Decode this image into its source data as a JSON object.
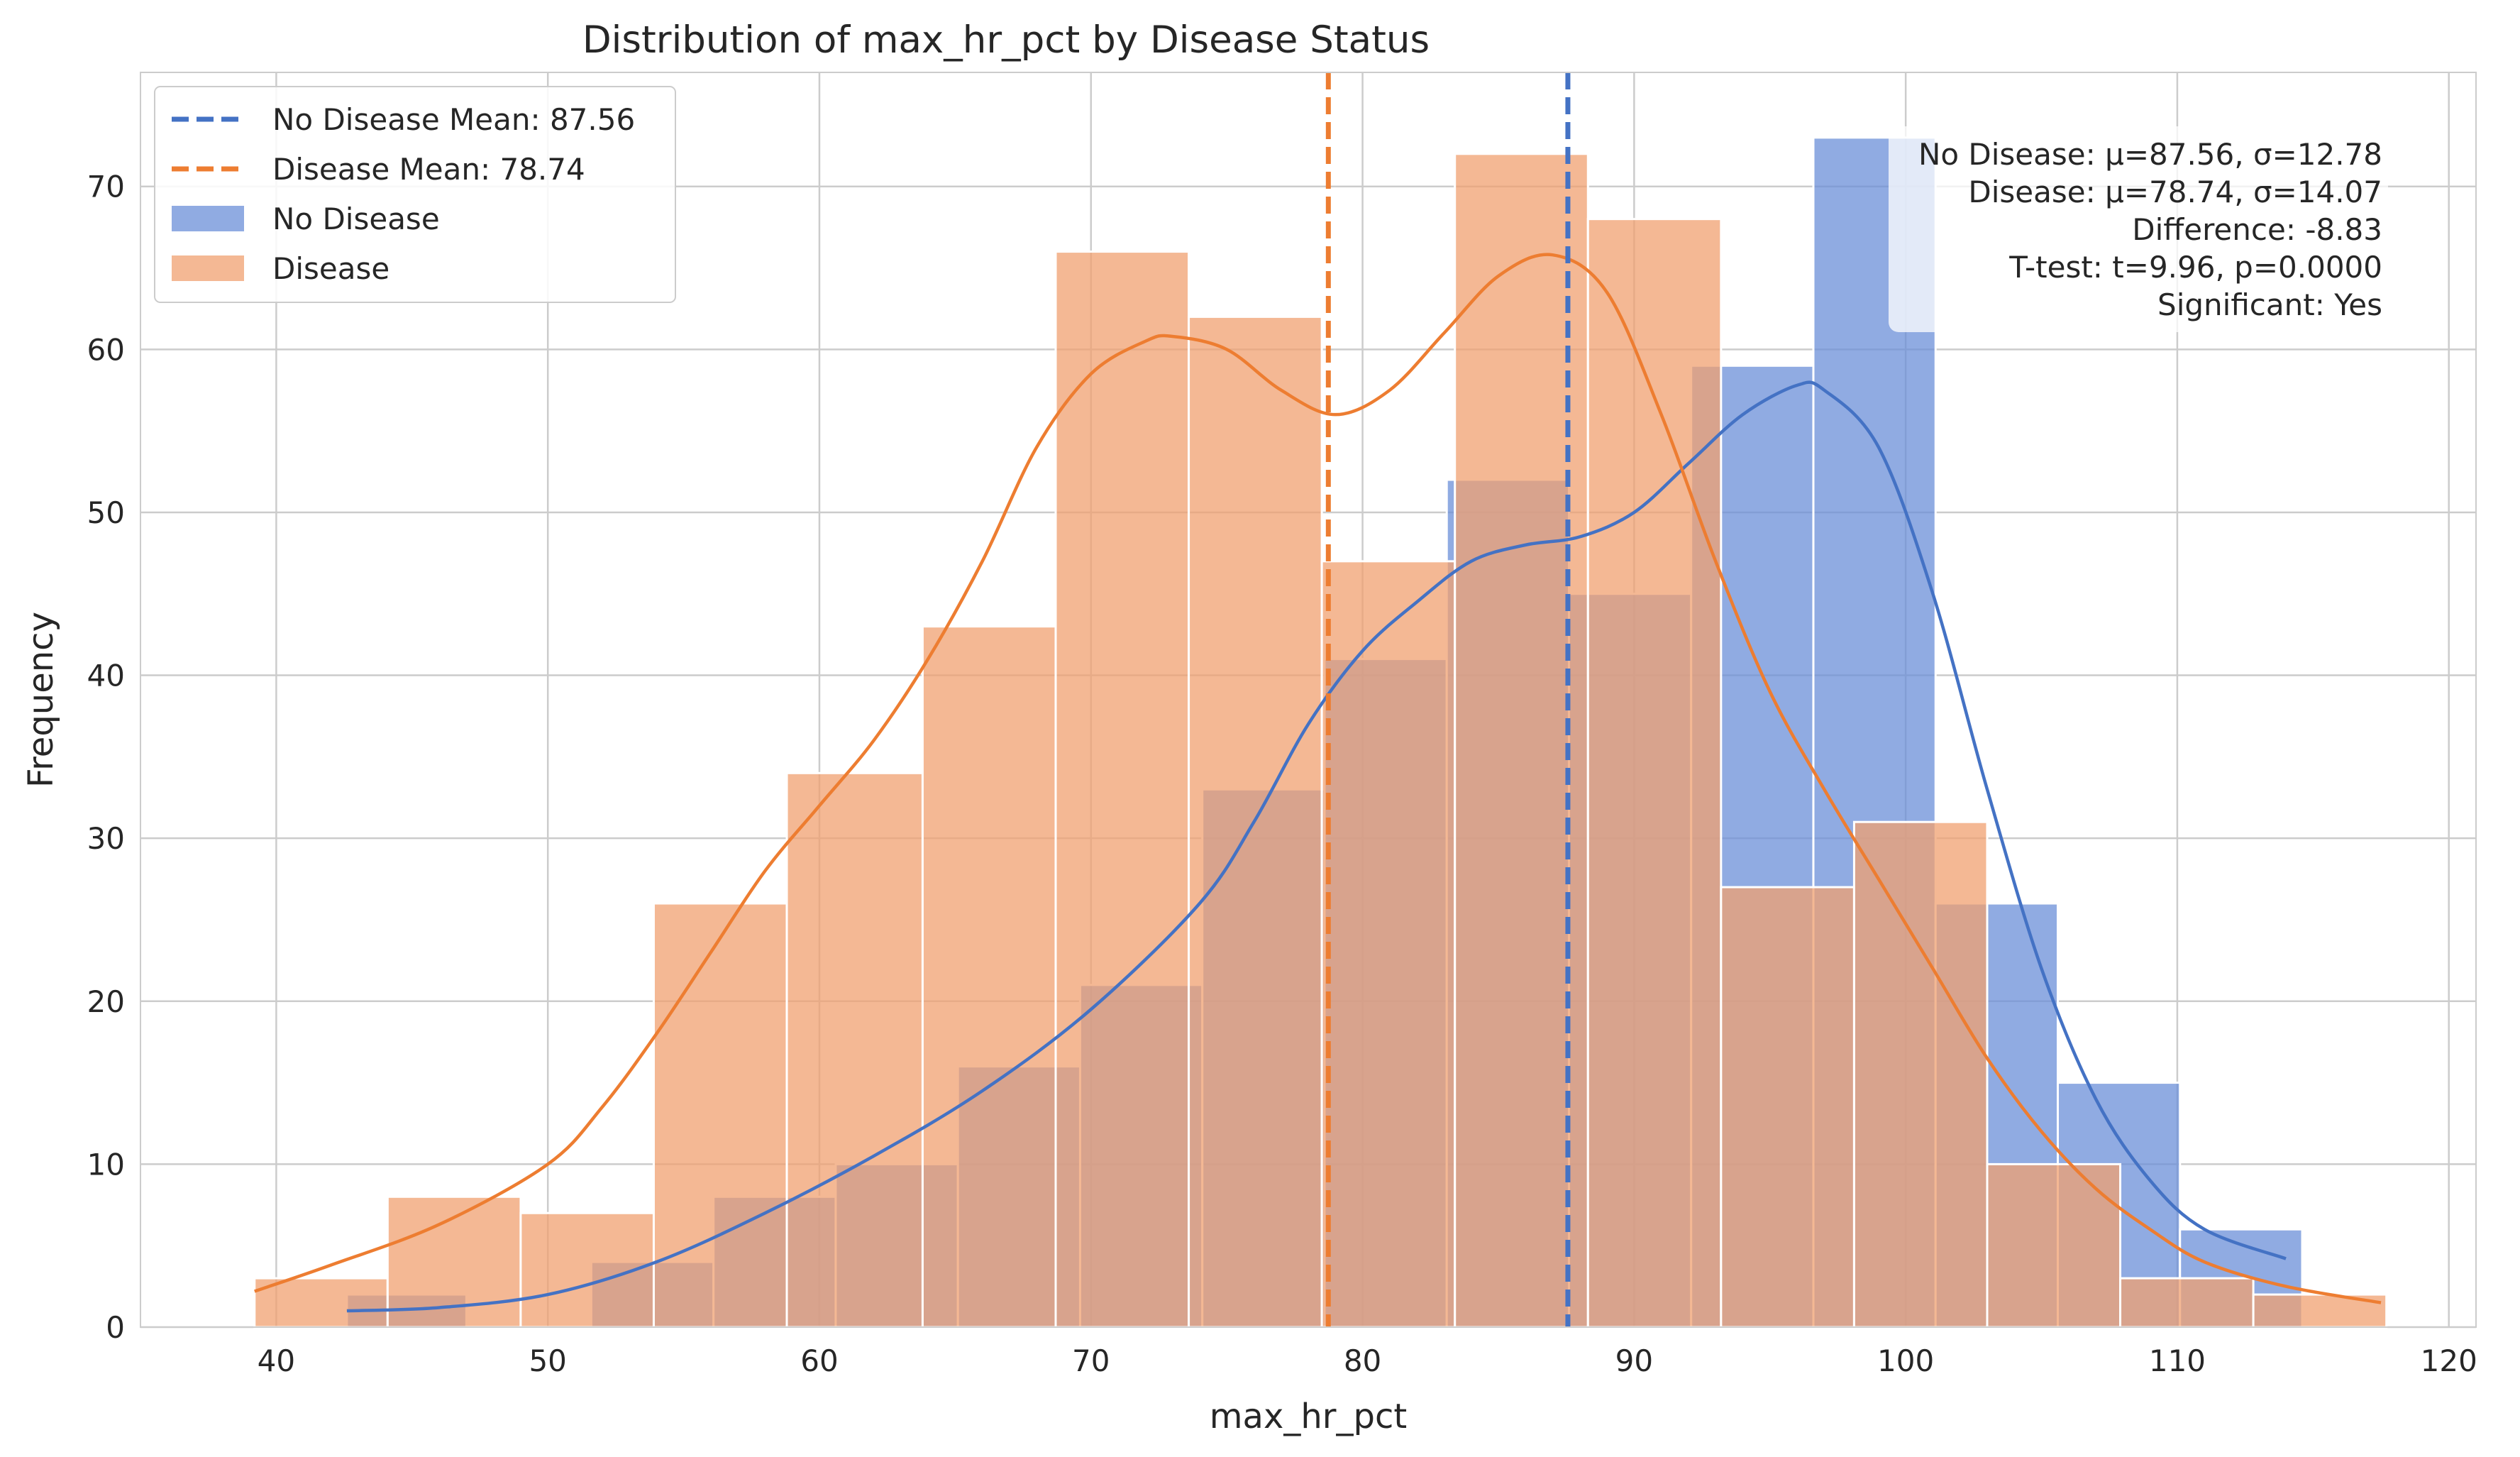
{
  "chart_data": {
    "type": "histogram",
    "title": "Distribution of max_hr_pct by Disease Status",
    "xlabel": "max_hr_pct",
    "ylabel": "Frequency",
    "xlim": [
      35,
      121
    ],
    "ylim": [
      0,
      77
    ],
    "xticks": [
      40,
      50,
      60,
      70,
      80,
      90,
      100,
      110,
      120
    ],
    "yticks": [
      0,
      10,
      20,
      30,
      40,
      50,
      60,
      70
    ],
    "grid": true,
    "legend_position": "top-left",
    "series": [
      {
        "name": "No Disease",
        "color": "#6b8fd8",
        "kde_color": "#4472c4",
        "bins": [
          {
            "x0": 42.6,
            "x1": 47.0,
            "count": 2
          },
          {
            "x0": 51.6,
            "x1": 56.1,
            "count": 4
          },
          {
            "x0": 56.1,
            "x1": 60.6,
            "count": 8
          },
          {
            "x0": 60.6,
            "x1": 65.1,
            "count": 10
          },
          {
            "x0": 65.1,
            "x1": 69.6,
            "count": 16
          },
          {
            "x0": 69.6,
            "x1": 74.1,
            "count": 21
          },
          {
            "x0": 74.1,
            "x1": 78.6,
            "count": 33
          },
          {
            "x0": 78.6,
            "x1": 83.1,
            "count": 41
          },
          {
            "x0": 83.1,
            "x1": 87.6,
            "count": 52
          },
          {
            "x0": 87.6,
            "x1": 92.1,
            "count": 45
          },
          {
            "x0": 92.1,
            "x1": 96.6,
            "count": 59
          },
          {
            "x0": 96.6,
            "x1": 101.1,
            "count": 73
          },
          {
            "x0": 101.1,
            "x1": 105.6,
            "count": 26
          },
          {
            "x0": 105.6,
            "x1": 110.1,
            "count": 15
          },
          {
            "x0": 110.1,
            "x1": 114.6,
            "count": 6
          }
        ],
        "kde": [
          [
            42.6,
            1.0
          ],
          [
            46,
            1.2
          ],
          [
            50,
            2.0
          ],
          [
            54,
            4.0
          ],
          [
            58,
            7.0
          ],
          [
            62,
            10.5
          ],
          [
            66,
            14.5
          ],
          [
            70,
            19.5
          ],
          [
            74,
            26.0
          ],
          [
            76,
            31.0
          ],
          [
            78,
            37.0
          ],
          [
            80,
            41.5
          ],
          [
            82,
            44.5
          ],
          [
            84,
            47.0
          ],
          [
            86,
            48.0
          ],
          [
            88,
            48.5
          ],
          [
            90,
            50.0
          ],
          [
            92,
            53.0
          ],
          [
            94,
            56.0
          ],
          [
            96,
            57.8
          ],
          [
            97,
            57.5
          ],
          [
            99,
            54.0
          ],
          [
            101,
            45.0
          ],
          [
            103,
            33.0
          ],
          [
            105,
            22.0
          ],
          [
            107,
            14.0
          ],
          [
            109,
            9.0
          ],
          [
            111,
            6.0
          ],
          [
            114,
            4.2
          ]
        ]
      },
      {
        "name": "Disease",
        "color": "#f0a070",
        "kde_color": "#ed7d31",
        "bins": [
          {
            "x0": 39.2,
            "x1": 44.1,
            "count": 3
          },
          {
            "x0": 44.1,
            "x1": 49.0,
            "count": 8
          },
          {
            "x0": 49.0,
            "x1": 53.9,
            "count": 7
          },
          {
            "x0": 53.9,
            "x1": 58.8,
            "count": 26
          },
          {
            "x0": 58.8,
            "x1": 63.8,
            "count": 34
          },
          {
            "x0": 63.8,
            "x1": 68.7,
            "count": 43
          },
          {
            "x0": 68.7,
            "x1": 73.6,
            "count": 66
          },
          {
            "x0": 73.6,
            "x1": 78.5,
            "count": 62
          },
          {
            "x0": 78.5,
            "x1": 83.4,
            "count": 47
          },
          {
            "x0": 83.4,
            "x1": 88.3,
            "count": 72
          },
          {
            "x0": 88.3,
            "x1": 93.2,
            "count": 68
          },
          {
            "x0": 93.2,
            "x1": 98.1,
            "count": 27
          },
          {
            "x0": 98.1,
            "x1": 103.0,
            "count": 31
          },
          {
            "x0": 103.0,
            "x1": 107.9,
            "count": 10
          },
          {
            "x0": 107.9,
            "x1": 112.8,
            "count": 3
          },
          {
            "x0": 112.8,
            "x1": 117.7,
            "count": 2
          }
        ],
        "kde": [
          [
            39.2,
            2.2
          ],
          [
            42,
            3.8
          ],
          [
            46,
            6.3
          ],
          [
            50,
            10.0
          ],
          [
            52,
            13.5
          ],
          [
            54,
            18.0
          ],
          [
            56,
            23.0
          ],
          [
            58,
            28.0
          ],
          [
            60,
            32.0
          ],
          [
            62,
            36.0
          ],
          [
            64,
            41.0
          ],
          [
            66,
            47.0
          ],
          [
            68,
            54.0
          ],
          [
            70,
            58.5
          ],
          [
            72,
            60.5
          ],
          [
            73,
            60.8
          ],
          [
            75,
            60.0
          ],
          [
            77,
            57.5
          ],
          [
            79,
            56.0
          ],
          [
            81,
            57.5
          ],
          [
            83,
            61.0
          ],
          [
            85,
            64.5
          ],
          [
            87,
            65.8
          ],
          [
            89,
            63.5
          ],
          [
            91,
            56.0
          ],
          [
            93,
            47.0
          ],
          [
            95,
            39.0
          ],
          [
            97,
            33.0
          ],
          [
            99,
            27.5
          ],
          [
            101,
            22.0
          ],
          [
            103,
            16.5
          ],
          [
            105,
            12.0
          ],
          [
            107,
            8.5
          ],
          [
            109,
            6.0
          ],
          [
            111,
            4.0
          ],
          [
            114,
            2.5
          ],
          [
            117.5,
            1.5
          ]
        ]
      }
    ],
    "mean_lines": [
      {
        "label": "No Disease Mean: 87.56",
        "value": 87.56,
        "color": "#4472c4"
      },
      {
        "label": "Disease Mean: 78.74",
        "value": 78.74,
        "color": "#ed7d31"
      }
    ],
    "stats_box": [
      "No Disease: μ=87.56, σ=12.78",
      "Disease: μ=78.74, σ=14.07",
      "Difference: -8.83",
      "T-test: t=9.96, p=0.0000",
      "Significant: Yes"
    ]
  }
}
